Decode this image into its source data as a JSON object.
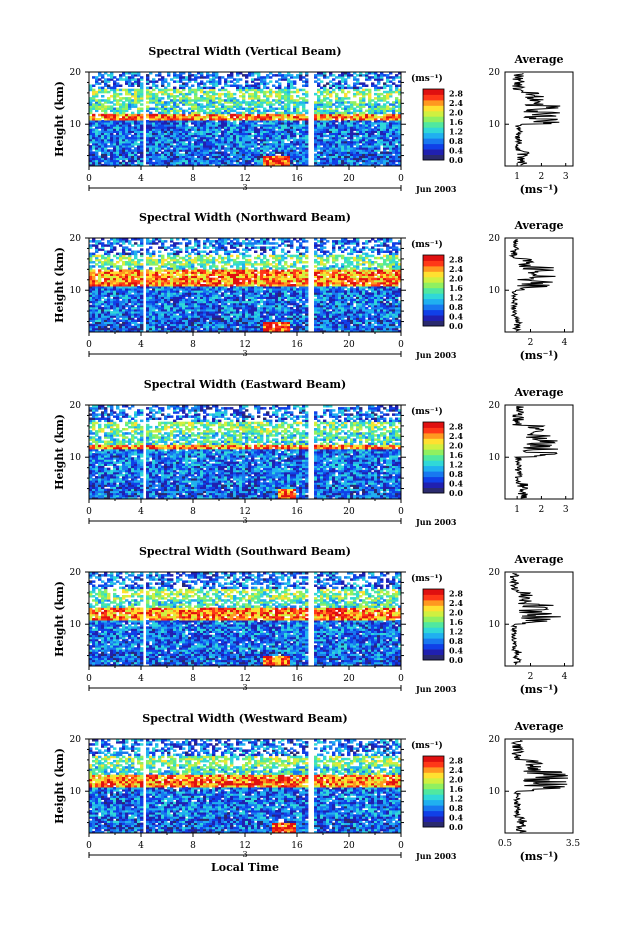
{
  "chart_data": [
    {
      "type": "heatmap",
      "title": "Spectral Width (Vertical Beam)",
      "ylabel": "Height (km)",
      "xlabel": "",
      "xlim": [
        0,
        24
      ],
      "ylim": [
        2,
        20
      ],
      "xticks": [
        "0",
        "4",
        "8",
        "12",
        "16",
        "20",
        "0"
      ],
      "yticks": [
        "20",
        "10"
      ],
      "date_marker": "3",
      "date_label": "Jun 2003",
      "colorbar": {
        "unit": "(ms⁻¹)",
        "ticks": [
          "2.8",
          "2.4",
          "2.0",
          "1.6",
          "1.2",
          "0.8",
          "0.4",
          "0.0"
        ],
        "range": [
          0,
          3.0
        ]
      },
      "data_gaps_hours": [
        [
          4.1,
          4.4
        ],
        [
          16.8,
          17.3
        ]
      ],
      "features": {
        "high_band_km": [
          11,
          12
        ],
        "low_patch_hours": [
          13.5,
          15.5
        ],
        "low_patch_km": [
          2,
          4
        ]
      },
      "average": {
        "title": "Average",
        "xlabel": "(ms⁻¹)",
        "xticks": [
          "1",
          "2",
          "3"
        ],
        "xlim": [
          0.5,
          3.3
        ],
        "yticks": [
          "20",
          "10"
        ],
        "peak_km": 11.5,
        "peak_value": 3.0
      },
      "seed": 11
    },
    {
      "type": "heatmap",
      "title": "Spectral Width (Northward Beam)",
      "ylabel": "Height (km)",
      "xlabel": "",
      "xlim": [
        0,
        24
      ],
      "ylim": [
        2,
        20
      ],
      "xticks": [
        "0",
        "4",
        "8",
        "12",
        "16",
        "20",
        "0"
      ],
      "yticks": [
        "20",
        "10"
      ],
      "date_marker": "3",
      "date_label": "Jun 2003",
      "colorbar": {
        "unit": "(ms⁻¹)",
        "ticks": [
          "2.8",
          "2.4",
          "2.0",
          "1.6",
          "1.2",
          "0.8",
          "0.4",
          "0.0"
        ],
        "range": [
          0,
          3.0
        ]
      },
      "data_gaps_hours": [
        [
          4.1,
          4.4
        ],
        [
          16.8,
          17.3
        ]
      ],
      "features": {
        "high_band_km": [
          11,
          14
        ],
        "low_patch_hours": [
          13.5,
          15.5
        ],
        "low_patch_km": [
          2,
          4
        ]
      },
      "average": {
        "title": "Average",
        "xlabel": "(ms⁻¹)",
        "xticks": [
          "2",
          "4"
        ],
        "xlim": [
          0.5,
          4.5
        ],
        "yticks": [
          "20",
          "10"
        ],
        "peak_km": 12.5,
        "peak_value": 3.6
      },
      "seed": 23
    },
    {
      "type": "heatmap",
      "title": "Spectral Width (Eastward Beam)",
      "ylabel": "Height (km)",
      "xlabel": "",
      "xlim": [
        0,
        24
      ],
      "ylim": [
        2,
        20
      ],
      "xticks": [
        "0",
        "4",
        "8",
        "12",
        "16",
        "20",
        "0"
      ],
      "yticks": [
        "20",
        "10"
      ],
      "date_marker": "3",
      "date_label": "Jun 2003",
      "colorbar": {
        "unit": "(ms⁻¹)",
        "ticks": [
          "2.8",
          "2.4",
          "2.0",
          "1.6",
          "1.2",
          "0.8",
          "0.4",
          "0.0"
        ],
        "range": [
          0,
          3.0
        ]
      },
      "data_gaps_hours": [
        [
          4.1,
          4.4
        ],
        [
          16.8,
          17.3
        ]
      ],
      "features": {
        "high_band_km": [
          11.5,
          12.5
        ],
        "low_patch_hours": [
          14.5,
          16.0
        ],
        "low_patch_km": [
          2,
          4
        ]
      },
      "average": {
        "title": "Average",
        "xlabel": "",
        "xticks": [
          "1",
          "2",
          "3"
        ],
        "xlim": [
          0.5,
          3.3
        ],
        "yticks": [
          "20",
          "10"
        ],
        "peak_km": 12.5,
        "peak_value": 2.7
      },
      "seed": 37
    },
    {
      "type": "heatmap",
      "title": "Spectral Width (Southward Beam)",
      "ylabel": "Height (km)",
      "xlabel": "",
      "xlim": [
        0,
        24
      ],
      "ylim": [
        2,
        20
      ],
      "xticks": [
        "0",
        "4",
        "8",
        "12",
        "16",
        "20",
        "0"
      ],
      "yticks": [
        "20",
        "10"
      ],
      "date_marker": "3",
      "date_label": "Jun 2003",
      "colorbar": {
        "unit": "(ms⁻¹)",
        "ticks": [
          "2.8",
          "2.4",
          "2.0",
          "1.6",
          "1.2",
          "0.8",
          "0.4",
          "0.0"
        ],
        "range": [
          0,
          3.0
        ]
      },
      "data_gaps_hours": [
        [
          4.1,
          4.4
        ],
        [
          16.8,
          17.3
        ]
      ],
      "features": {
        "high_band_km": [
          11,
          13
        ],
        "low_patch_hours": [
          13.5,
          15.5
        ],
        "low_patch_km": [
          2,
          4
        ]
      },
      "average": {
        "title": "Average",
        "xlabel": "(ms⁻¹)",
        "xticks": [
          "2",
          "4"
        ],
        "xlim": [
          0.5,
          4.5
        ],
        "yticks": [
          "20",
          "10"
        ],
        "peak_km": 12.0,
        "peak_value": 3.8
      },
      "seed": 53
    },
    {
      "type": "heatmap",
      "title": "Spectral Width (Westward Beam)",
      "ylabel": "Height (km)",
      "xlabel": "Local Time",
      "xlim": [
        0,
        24
      ],
      "ylim": [
        2,
        20
      ],
      "xticks": [
        "0",
        "4",
        "8",
        "12",
        "16",
        "20",
        "0"
      ],
      "yticks": [
        "20",
        "10"
      ],
      "date_marker": "3",
      "date_label": "Jun 2003",
      "colorbar": {
        "unit": "(ms⁻¹)",
        "ticks": [
          "2.8",
          "2.4",
          "2.0",
          "1.6",
          "1.2",
          "0.8",
          "0.4",
          "0.0"
        ],
        "range": [
          0,
          3.0
        ]
      },
      "data_gaps_hours": [
        [
          4.1,
          4.4
        ],
        [
          16.8,
          17.3
        ]
      ],
      "features": {
        "high_band_km": [
          11,
          13
        ],
        "low_patch_hours": [
          14.0,
          16.0
        ],
        "low_patch_km": [
          2,
          4
        ]
      },
      "average": {
        "title": "Average",
        "xlabel": "(ms⁻¹)",
        "xticks": [
          "0.5",
          "3.5"
        ],
        "xlim": [
          0.5,
          3.5
        ],
        "yticks": [
          "20",
          "10"
        ],
        "peak_km": 12.0,
        "peak_value": 3.3
      },
      "seed": 71
    }
  ]
}
